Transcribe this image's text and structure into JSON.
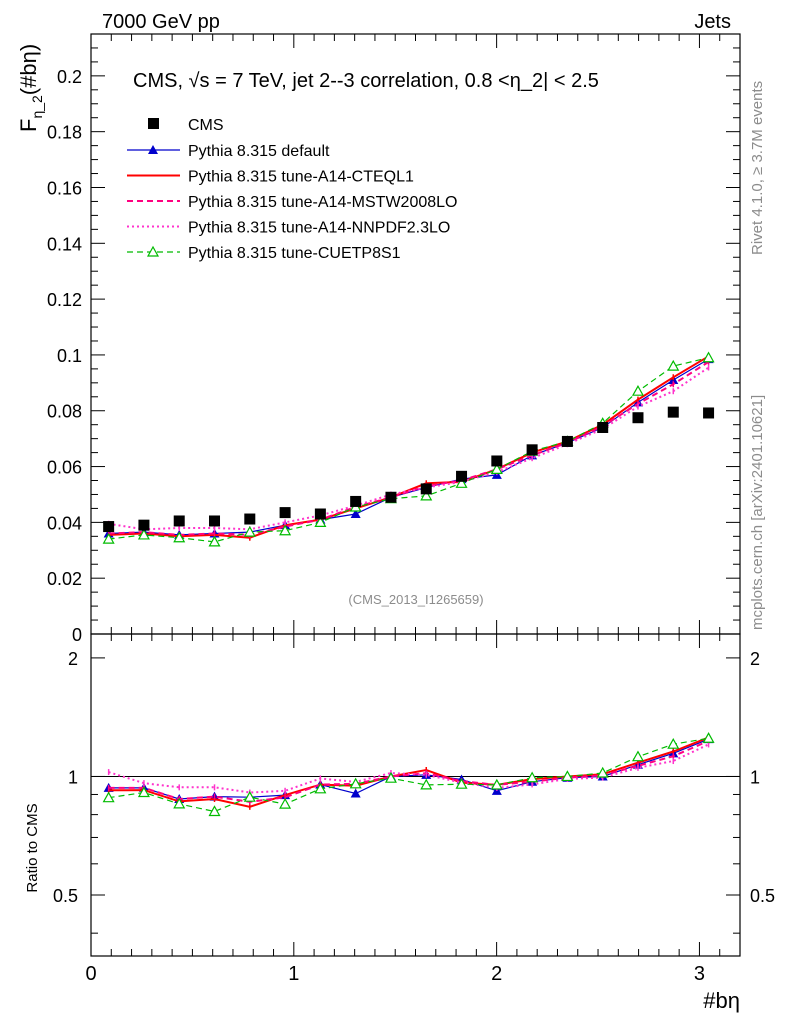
{
  "header": {
    "left": "7000 GeV pp",
    "right": "Jets"
  },
  "side": {
    "upper": "Rivet 4.1.0, ≥ 3.7M events",
    "lower": "mcplots.cern.ch [arXiv:2401.10621]"
  },
  "chart_data": {
    "type": "scatter",
    "title": "CMS, √s = 7 TeV, jet 2--3 correlation, 0.8 <η_2| < 2.5",
    "watermark": "(CMS_2013_I1265659)",
    "xlabel": "#bη",
    "ylabel": "F_{η_2}(#bη)",
    "ratio_ylabel": "Ratio to CMS",
    "xlim": [
      0,
      3.2
    ],
    "ylim": [
      0,
      0.215
    ],
    "ratio_ylim": [
      0.35,
      2.3
    ],
    "x_ticks": [
      "0",
      "1",
      "2",
      "3"
    ],
    "y_ticks": [
      "0",
      "0.02",
      "0.04",
      "0.06",
      "0.08",
      "0.1",
      "0.12",
      "0.14",
      "0.16",
      "0.18",
      "0.2"
    ],
    "ratio_ticks": [
      "0.5",
      "1",
      "2"
    ],
    "x": [
      0.087,
      0.261,
      0.435,
      0.609,
      0.783,
      0.957,
      1.131,
      1.305,
      1.479,
      1.653,
      1.827,
      2.001,
      2.175,
      2.349,
      2.523,
      2.697,
      2.871,
      3.045
    ],
    "data": {
      "name": "CMS",
      "color": "#000000",
      "values": [
        0.0385,
        0.039,
        0.0405,
        0.0405,
        0.0412,
        0.0435,
        0.043,
        0.0475,
        0.049,
        0.052,
        0.0565,
        0.062,
        0.066,
        0.069,
        0.074,
        0.0775,
        0.0795,
        0.0792
      ]
    },
    "series": [
      {
        "name": "Pythia 8.315 default",
        "color": "#0000cc",
        "style": "solid-triangle",
        "values": [
          0.036,
          0.0365,
          0.0355,
          0.036,
          0.0365,
          0.039,
          0.041,
          0.043,
          0.049,
          0.0525,
          0.0555,
          0.057,
          0.064,
          0.0685,
          0.074,
          0.083,
          0.091,
          0.0985
        ]
      },
      {
        "name": "Pythia 8.315 tune-A14-CTEQL1",
        "color": "#ff0000",
        "style": "solid",
        "values": [
          0.0355,
          0.036,
          0.035,
          0.0355,
          0.0345,
          0.039,
          0.041,
          0.045,
          0.049,
          0.054,
          0.0545,
          0.059,
          0.065,
          0.069,
          0.075,
          0.084,
          0.092,
          0.0995
        ]
      },
      {
        "name": "Pythia 8.315 tune-A14-MSTW2008LO",
        "color": "#ff0080",
        "style": "dashed",
        "values": [
          0.036,
          0.0365,
          0.0355,
          0.036,
          0.0355,
          0.0385,
          0.041,
          0.0455,
          0.049,
          0.053,
          0.055,
          0.059,
          0.064,
          0.0685,
          0.0745,
          0.0825,
          0.0895,
          0.0975
        ]
      },
      {
        "name": "Pythia 8.315 tune-A14-NNPDF2.3LO",
        "color": "#ff33cc",
        "style": "dotted",
        "values": [
          0.0395,
          0.0375,
          0.038,
          0.038,
          0.0375,
          0.04,
          0.0425,
          0.046,
          0.05,
          0.0525,
          0.0545,
          0.058,
          0.063,
          0.068,
          0.0735,
          0.0815,
          0.087,
          0.0955
        ]
      },
      {
        "name": "Pythia 8.315 tune-CUETP8S1",
        "color": "#00bb00",
        "style": "dashed-triangle",
        "values": [
          0.034,
          0.0355,
          0.0345,
          0.033,
          0.0365,
          0.037,
          0.04,
          0.0455,
          0.0485,
          0.0495,
          0.054,
          0.059,
          0.0655,
          0.069,
          0.0755,
          0.087,
          0.096,
          0.099
        ]
      }
    ]
  }
}
